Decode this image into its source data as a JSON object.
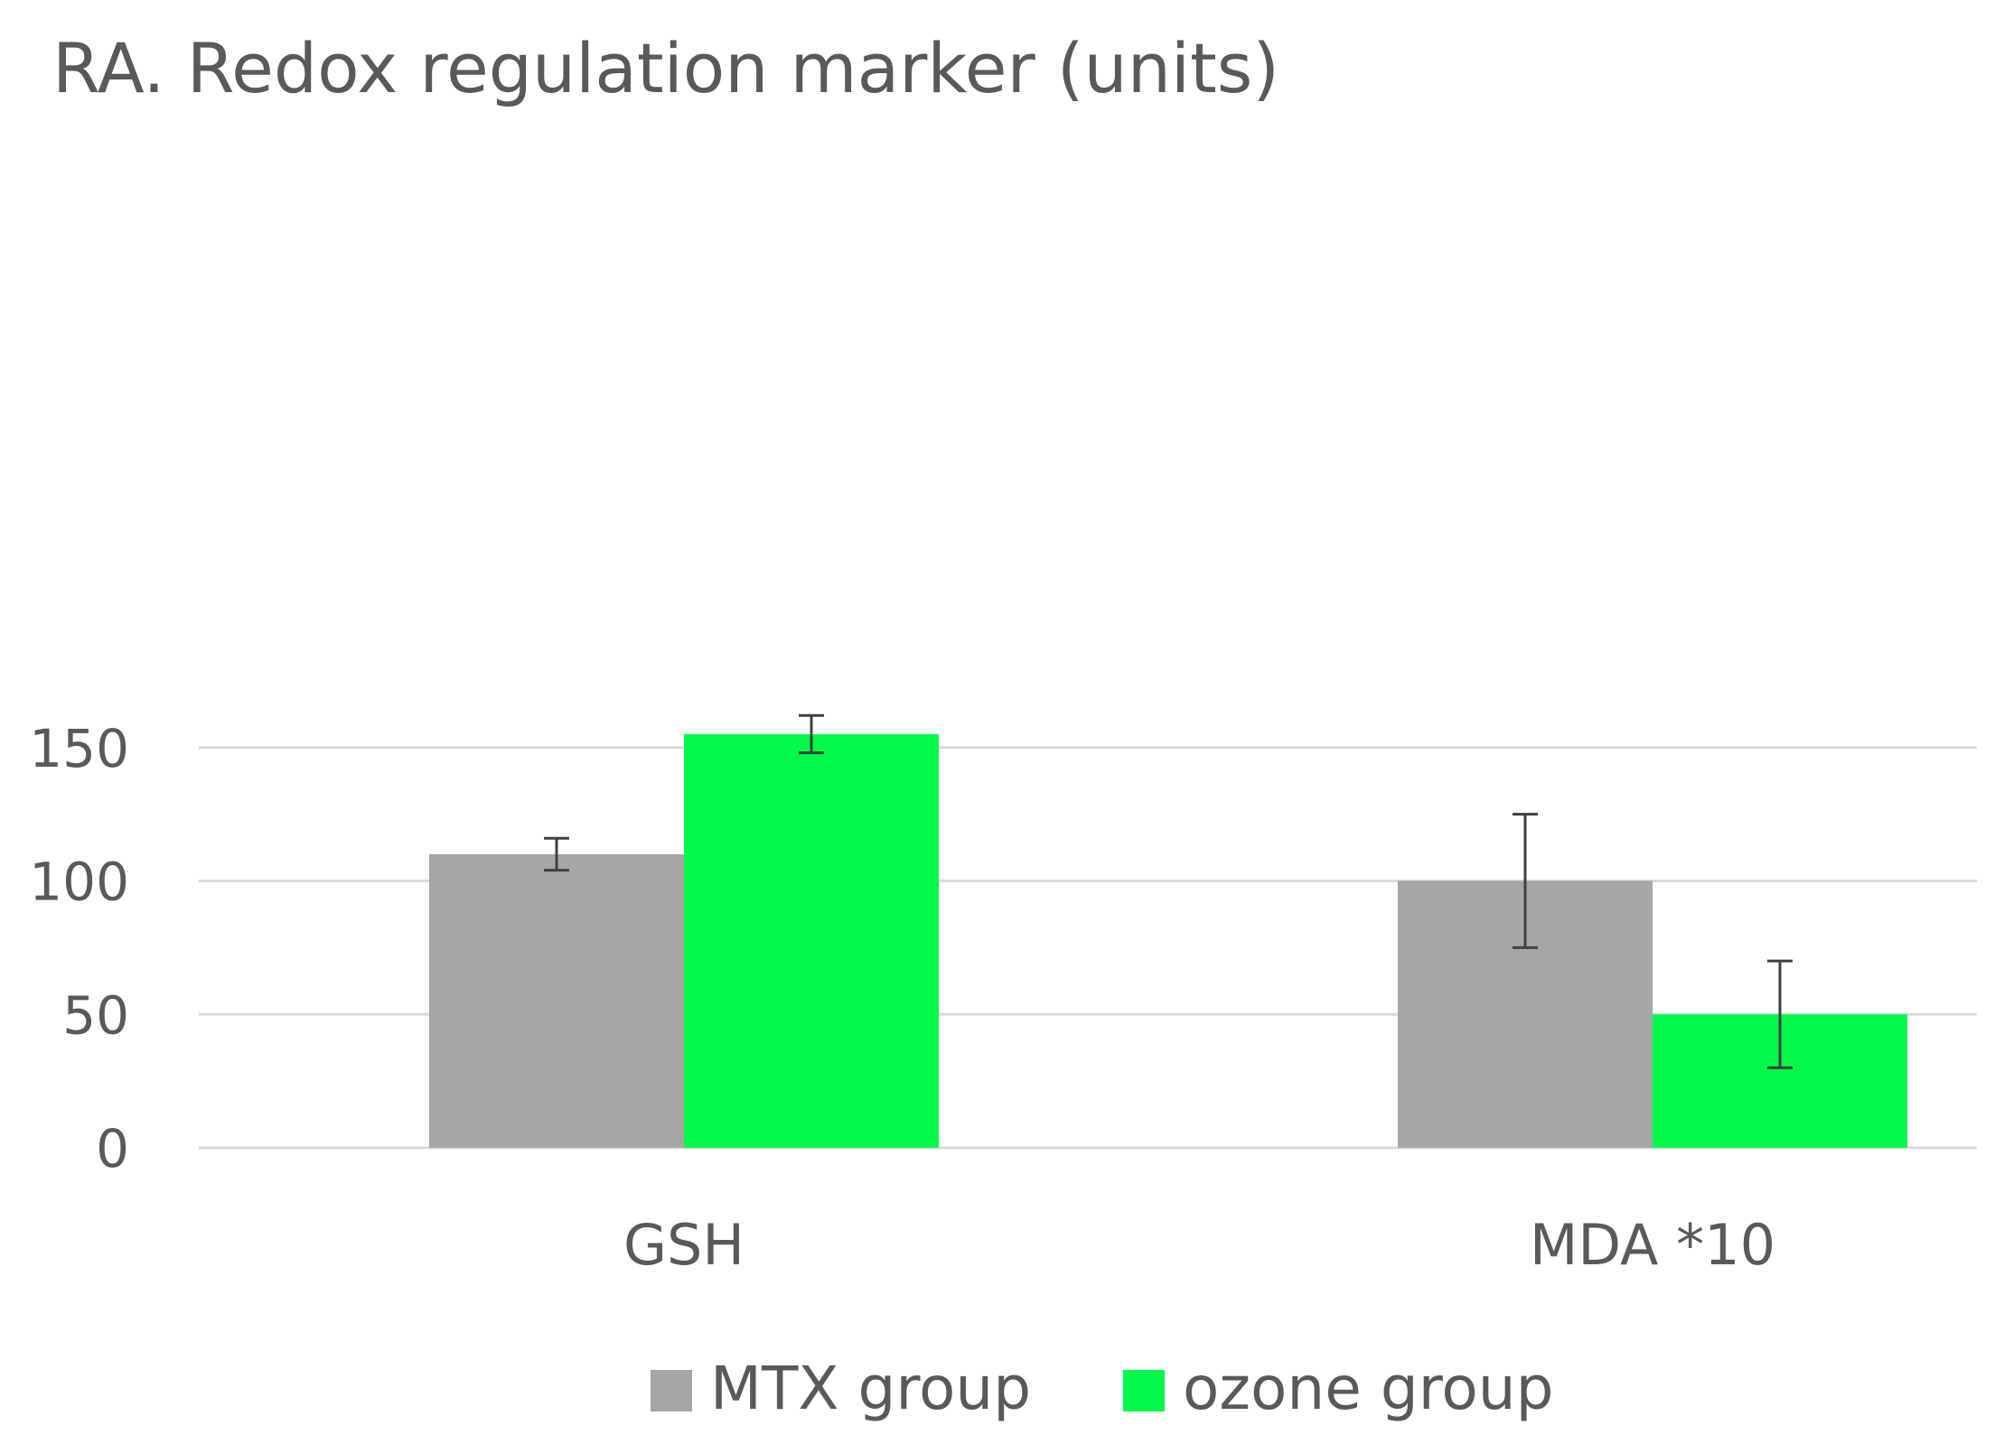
{
  "chart_data": {
    "type": "bar",
    "title": "RA. Redox regulation marker (units)",
    "xlabel": "",
    "ylabel": "",
    "categories": [
      "GSH",
      "MDA *10"
    ],
    "series": [
      {
        "name": "MTX group",
        "color": "#a6a6a6",
        "values": [
          110,
          100
        ],
        "error": [
          6,
          25
        ]
      },
      {
        "name": "ozone group",
        "color": "#00f94a",
        "values": [
          155,
          50
        ],
        "error": [
          7,
          20
        ]
      }
    ],
    "ylim": [
      0,
      150
    ],
    "yticks": [
      0,
      50,
      100,
      150
    ],
    "grid": true,
    "legend_position": "bottom",
    "colors": {
      "gridline": "#d9d9d9",
      "text": "#595959",
      "errorbar": "#404040"
    }
  }
}
